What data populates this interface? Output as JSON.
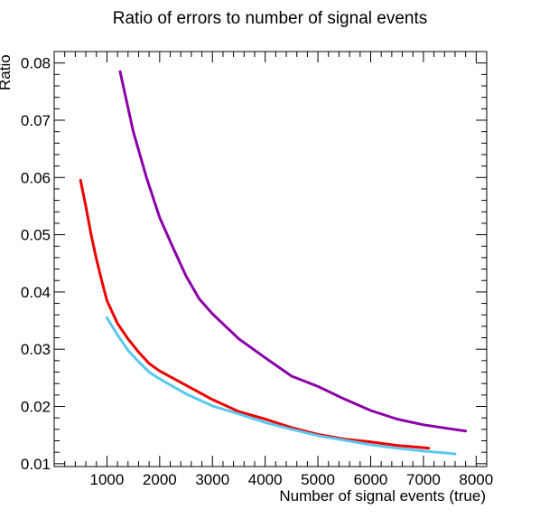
{
  "chart_data": {
    "type": "line",
    "title": "Ratio of errors to number of signal events",
    "xlabel": "Number of signal events (true)",
    "ylabel": "Ratio",
    "xlim": [
      0,
      8200
    ],
    "ylim": [
      0.0095,
      0.082
    ],
    "x_ticks": [
      1000,
      2000,
      3000,
      4000,
      5000,
      6000,
      7000,
      8000
    ],
    "y_ticks": [
      0.01,
      0.02,
      0.03,
      0.04,
      0.05,
      0.06,
      0.07,
      0.08
    ],
    "x_tick_labels": [
      "1000",
      "2000",
      "3000",
      "4000",
      "5000",
      "6000",
      "7000",
      "8000"
    ],
    "y_tick_labels": [
      "0.01",
      "0.02",
      "0.03",
      "0.04",
      "0.05",
      "0.06",
      "0.07",
      "0.08"
    ],
    "grid": false,
    "legend": false,
    "series": [
      {
        "color": "#8b00a8",
        "x": [
          1250,
          1500,
          1750,
          2000,
          2250,
          2500,
          2750,
          3000,
          3500,
          4000,
          4500,
          5000,
          5500,
          6000,
          6500,
          7000,
          7500,
          7800
        ],
        "y": [
          0.0785,
          0.068,
          0.06,
          0.053,
          0.0478,
          0.0428,
          0.0388,
          0.0362,
          0.0318,
          0.0285,
          0.0253,
          0.0235,
          0.0213,
          0.0193,
          0.0178,
          0.0168,
          0.0161,
          0.0157
        ]
      },
      {
        "color": "#ee0000",
        "x": [
          500,
          600,
          700,
          800,
          900,
          1000,
          1200,
          1400,
          1600,
          1800,
          2000,
          2500,
          3000,
          3500,
          4000,
          4500,
          5000,
          5500,
          6000,
          6500,
          7000,
          7100
        ],
        "y": [
          0.0595,
          0.055,
          0.05,
          0.0458,
          0.042,
          0.0385,
          0.0345,
          0.0318,
          0.0295,
          0.0275,
          0.0262,
          0.0237,
          0.0212,
          0.0191,
          0.0178,
          0.0163,
          0.0151,
          0.0143,
          0.0138,
          0.0132,
          0.0128,
          0.0127
        ]
      },
      {
        "color": "#5ac8f0",
        "x": [
          1000,
          1200,
          1400,
          1600,
          1800,
          2000,
          2500,
          3000,
          3500,
          4000,
          4500,
          5000,
          5500,
          6000,
          6500,
          7000,
          7500,
          7600
        ],
        "y": [
          0.0355,
          0.0325,
          0.0298,
          0.0278,
          0.026,
          0.0248,
          0.0222,
          0.0201,
          0.0187,
          0.0172,
          0.016,
          0.0149,
          0.0141,
          0.0133,
          0.0127,
          0.0122,
          0.0118,
          0.0117
        ]
      }
    ]
  }
}
